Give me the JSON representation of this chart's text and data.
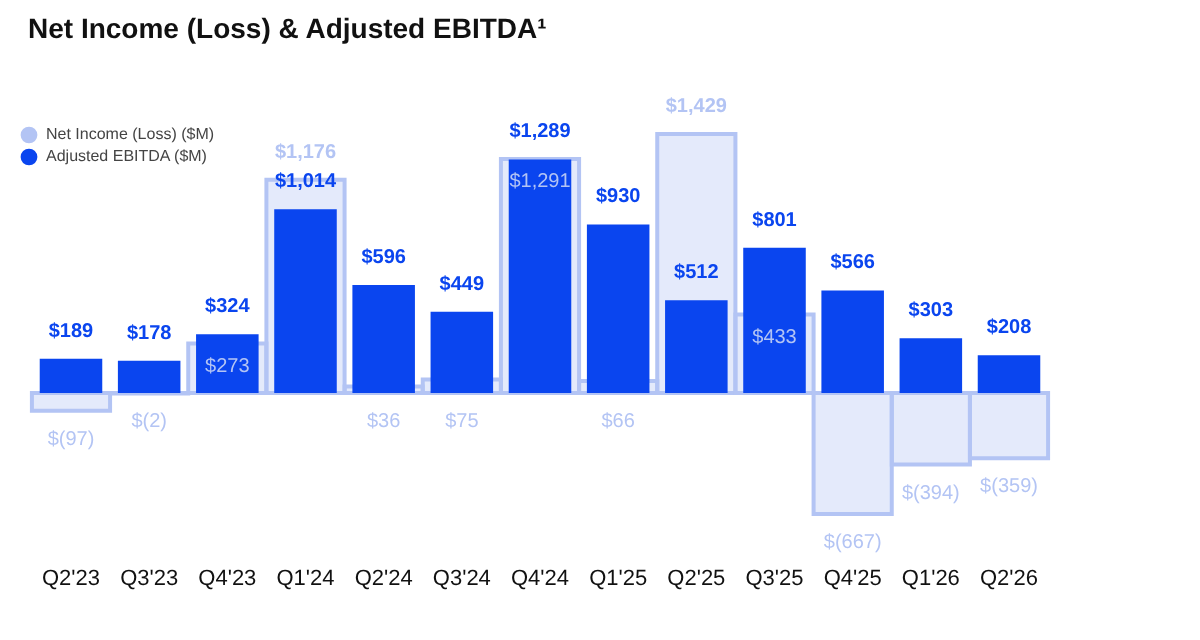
{
  "chart_data": {
    "type": "bar",
    "title": "Net Income (Loss) & Adjusted EBITDA¹",
    "categories": [
      "Q2'23",
      "Q3'23",
      "Q4'23",
      "Q1'24",
      "Q2'24",
      "Q3'24",
      "Q4'24",
      "Q1'25",
      "Q2'25",
      "Q3'25",
      "Q4'25",
      "Q1'26",
      "Q2'26"
    ],
    "series": [
      {
        "name": "Net Income (Loss) ($M)",
        "color": "#b3c4f4",
        "values": [
          -97,
          -2,
          273,
          1176,
          36,
          75,
          1291,
          66,
          1429,
          433,
          -667,
          -394,
          -359
        ],
        "value_labels": [
          "$(97)",
          "$(2)",
          "$273",
          "$1,176",
          "$36",
          "$75",
          "$1,291",
          "$66",
          "$1,429",
          "$433",
          "$(667)",
          "$(394)",
          "$(359)"
        ]
      },
      {
        "name": "Adjusted EBITDA ($M)",
        "color": "#0a45ef",
        "values": [
          189,
          178,
          324,
          1014,
          596,
          449,
          1289,
          930,
          512,
          801,
          566,
          303,
          208
        ],
        "value_labels": [
          "$189",
          "$178",
          "$324",
          "$1,014",
          "$596",
          "$449",
          "$1,289",
          "$930",
          "$512",
          "$801",
          "$566",
          "$303",
          "$208"
        ]
      }
    ],
    "legend": "top left"
  }
}
